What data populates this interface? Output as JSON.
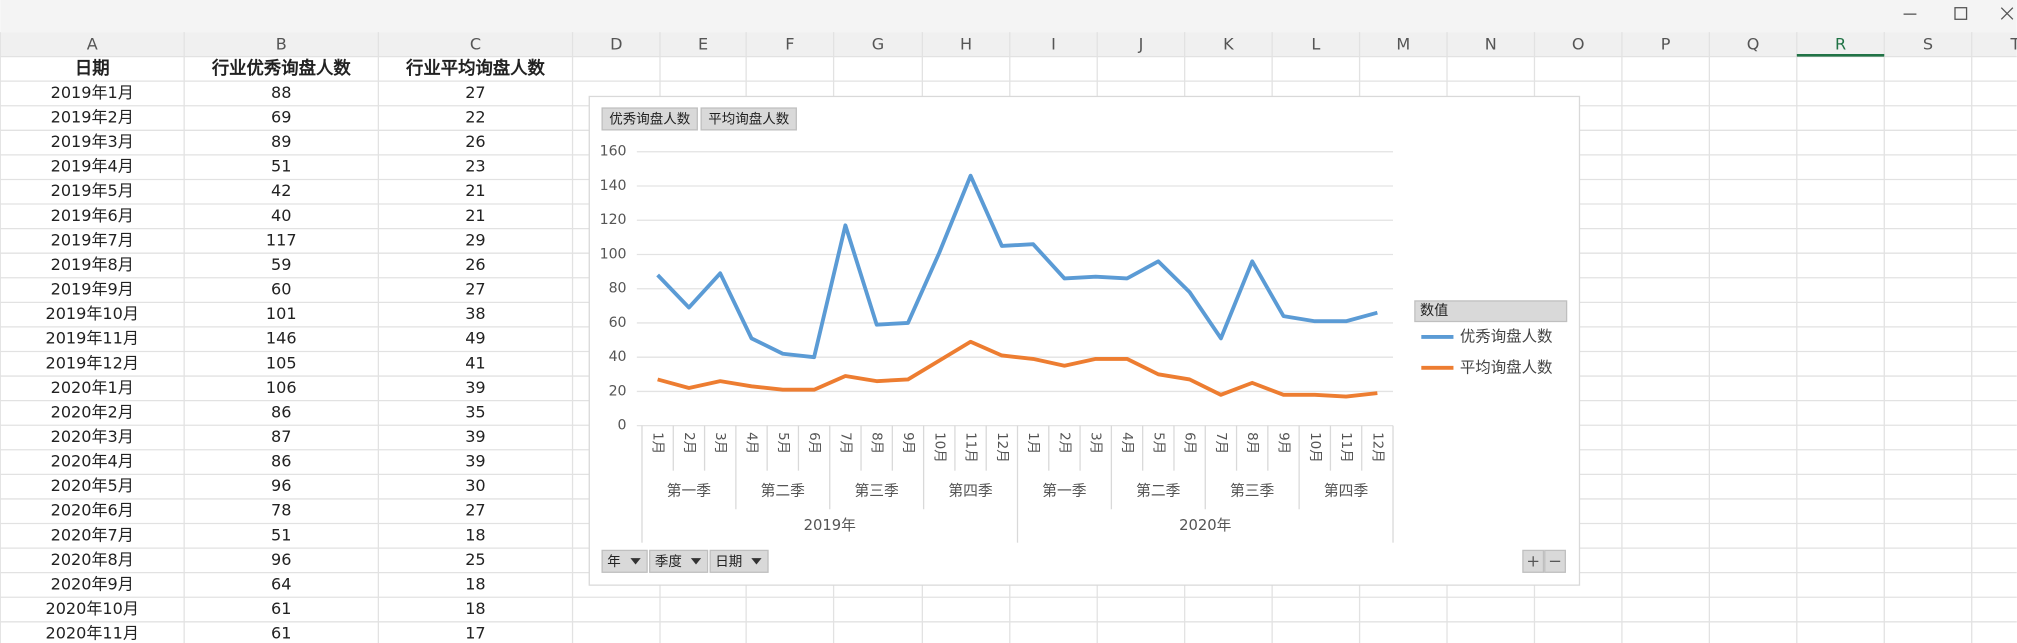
{
  "sheet": {
    "columns": [
      "A",
      "B",
      "C",
      "D",
      "E",
      "F",
      "G",
      "H",
      "I",
      "J",
      "K",
      "L",
      "M",
      "N",
      "O",
      "P",
      "Q",
      "R",
      "S",
      "T"
    ],
    "header": [
      "日期",
      "行业优秀询盘人数",
      "行业平均询盘人数"
    ],
    "rows": [
      [
        "2019年1月",
        88,
        27
      ],
      [
        "2019年2月",
        69,
        22
      ],
      [
        "2019年3月",
        89,
        26
      ],
      [
        "2019年4月",
        51,
        23
      ],
      [
        "2019年5月",
        42,
        21
      ],
      [
        "2019年6月",
        40,
        21
      ],
      [
        "2019年7月",
        117,
        29
      ],
      [
        "2019年8月",
        59,
        26
      ],
      [
        "2019年9月",
        60,
        27
      ],
      [
        "2019年10月",
        101,
        38
      ],
      [
        "2019年11月",
        146,
        49
      ],
      [
        "2019年12月",
        105,
        41
      ],
      [
        "2020年1月",
        106,
        39
      ],
      [
        "2020年2月",
        86,
        35
      ],
      [
        "2020年3月",
        87,
        39
      ],
      [
        "2020年4月",
        86,
        39
      ],
      [
        "2020年5月",
        96,
        30
      ],
      [
        "2020年6月",
        78,
        27
      ],
      [
        "2020年7月",
        51,
        18
      ],
      [
        "2020年8月",
        96,
        25
      ],
      [
        "2020年9月",
        64,
        18
      ],
      [
        "2020年10月",
        61,
        18
      ],
      [
        "2020年11月",
        61,
        17
      ]
    ]
  },
  "chart_data": {
    "type": "line",
    "categories": [
      "1月",
      "2月",
      "3月",
      "4月",
      "5月",
      "6月",
      "7月",
      "8月",
      "9月",
      "10月",
      "11月",
      "12月",
      "1月",
      "2月",
      "3月",
      "4月",
      "5月",
      "6月",
      "7月",
      "8月",
      "9月",
      "10月",
      "11月",
      "12月"
    ],
    "quarters": [
      "第一季",
      "第二季",
      "第三季",
      "第四季",
      "第一季",
      "第二季",
      "第三季",
      "第四季"
    ],
    "years": [
      "2019年",
      "2020年"
    ],
    "series": [
      {
        "name": "优秀询盘人数",
        "color": "#5b9bd5",
        "values": [
          88,
          69,
          89,
          51,
          42,
          40,
          117,
          59,
          60,
          101,
          146,
          105,
          106,
          86,
          87,
          86,
          96,
          78,
          51,
          96,
          64,
          61,
          61,
          66
        ]
      },
      {
        "name": "平均询盘人数",
        "color": "#ed7d31",
        "values": [
          27,
          22,
          26,
          23,
          21,
          21,
          29,
          26,
          27,
          38,
          49,
          41,
          39,
          35,
          39,
          39,
          30,
          27,
          18,
          25,
          18,
          18,
          17,
          19
        ]
      }
    ],
    "ylim": [
      0,
      160
    ],
    "yticks": [
      0,
      20,
      40,
      60,
      80,
      100,
      120,
      140,
      160
    ],
    "grid": true,
    "legend": "right",
    "legend_title": "数值",
    "axis_buttons": [
      "年",
      "季度",
      "日期"
    ]
  }
}
